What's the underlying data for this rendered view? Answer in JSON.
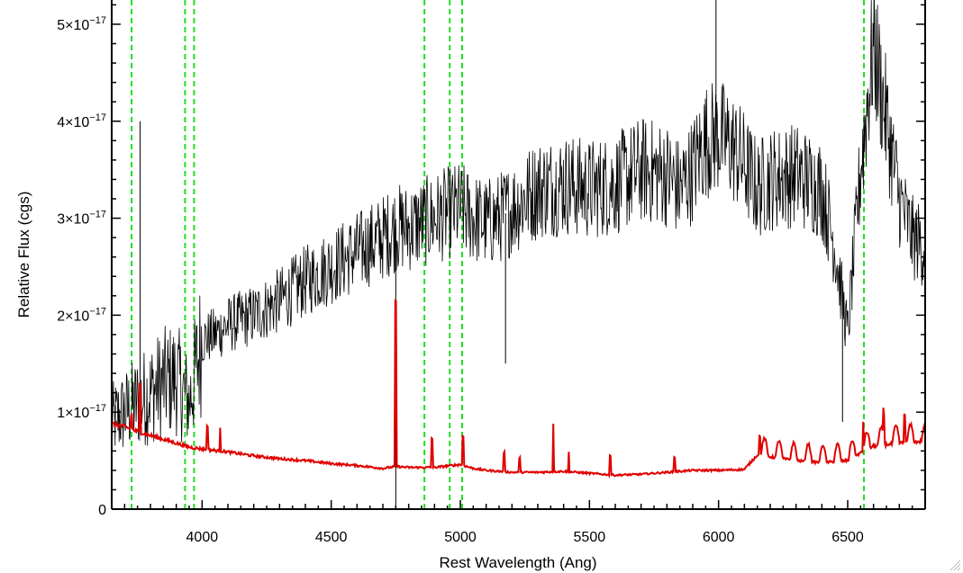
{
  "chart_data": {
    "type": "line",
    "title": "",
    "xlabel": "Rest Wavelength (Ang)",
    "ylabel": "Relative Flux (cgs)",
    "xlim": [
      3650,
      6800
    ],
    "ylim": [
      0,
      5.25e-17
    ],
    "x_ticks": [
      4000,
      4500,
      5000,
      5500,
      6000,
      6500
    ],
    "x_tick_labels": [
      "4000",
      "4500",
      "5000",
      "5500",
      "6000",
      "6500"
    ],
    "y_ticks": [
      0,
      1e-17,
      2e-17,
      3e-17,
      4e-17,
      5e-17
    ],
    "y_tick_labels": [
      {
        "mantissa": "0",
        "exponent": ""
      },
      {
        "mantissa": "1×10",
        "exponent": "−17"
      },
      {
        "mantissa": "2×10",
        "exponent": "−17"
      },
      {
        "mantissa": "3×10",
        "exponent": "−17"
      },
      {
        "mantissa": "4×10",
        "exponent": "−17"
      },
      {
        "mantissa": "5×10",
        "exponent": "−17"
      }
    ],
    "grid": false,
    "legend": "none",
    "series": [
      {
        "color": "#000000",
        "style": "noisy-spectrum",
        "x": [
          3650,
          3700,
          3750,
          3800,
          3850,
          3900,
          3950,
          4000,
          4050,
          4100,
          4200,
          4300,
          4400,
          4500,
          4600,
          4700,
          4750,
          4800,
          4850,
          4900,
          4950,
          5000,
          5050,
          5100,
          5150,
          5200,
          5300,
          5400,
          5500,
          5600,
          5700,
          5800,
          5850,
          5900,
          5950,
          6000,
          6050,
          6100,
          6150,
          6200,
          6300,
          6400,
          6450,
          6500,
          6550,
          6600,
          6650,
          6700,
          6750,
          6800
        ],
        "y": [
          9e-18,
          1e-17,
          1.1e-17,
          1.2e-17,
          1.3e-17,
          1.35e-17,
          1.1e-17,
          1.75e-17,
          1.8e-17,
          1.9e-17,
          2e-17,
          2.15e-17,
          2.35e-17,
          2.5e-17,
          2.65e-17,
          2.8e-17,
          2.9e-17,
          2.9e-17,
          2.95e-17,
          3e-17,
          3.05e-17,
          3.1e-17,
          3e-17,
          2.95e-17,
          3e-17,
          3.1e-17,
          3.3e-17,
          3.35e-17,
          3.3e-17,
          3.35e-17,
          3.5e-17,
          3.45e-17,
          3.3e-17,
          3.5e-17,
          3.8e-17,
          3.85e-17,
          3.75e-17,
          3.55e-17,
          3.3e-17,
          3.4e-17,
          3.45e-17,
          3.3e-17,
          2.7e-17,
          1.8e-17,
          3.5e-17,
          4.8e-17,
          4e-17,
          3.2e-17,
          2.8e-17,
          2.7e-17
        ],
        "spikes": [
          {
            "x": 3760,
            "y": 4e-17
          },
          {
            "x": 4750,
            "y": 0.0
          },
          {
            "x": 5175,
            "y": 1.5e-17
          },
          {
            "x": 5990,
            "y": 5.25e-17
          },
          {
            "x": 6480,
            "y": 9e-18
          }
        ]
      },
      {
        "color": "#e00000",
        "style": "model-fit",
        "x": [
          3650,
          3700,
          3750,
          3800,
          3850,
          3900,
          3950,
          4000,
          4100,
          4200,
          4300,
          4400,
          4500,
          4600,
          4700,
          4750,
          4800,
          4900,
          5000,
          5050,
          5100,
          5200,
          5300,
          5400,
          5500,
          5600,
          5700,
          5800,
          5900,
          6000,
          6100,
          6150,
          6200,
          6300,
          6400,
          6500,
          6550,
          6600,
          6700,
          6800
        ],
        "y": [
          8.8e-18,
          8.5e-18,
          8e-18,
          7.6e-18,
          7.2e-18,
          6.8e-18,
          6.4e-18,
          6.2e-18,
          5.9e-18,
          5.5e-18,
          5.2e-18,
          5e-18,
          4.7e-18,
          4.5e-18,
          4.2e-18,
          4.4e-18,
          4.3e-18,
          4.3e-18,
          4.6e-18,
          4.2e-18,
          4e-18,
          3.8e-18,
          3.8e-18,
          3.9e-18,
          3.7e-18,
          3.5e-18,
          3.6e-18,
          3.8e-18,
          4e-18,
          4e-18,
          4.1e-18,
          5.6e-18,
          5.4e-18,
          5e-18,
          4.8e-18,
          5e-18,
          5.8e-18,
          6.5e-18,
          6.8e-18,
          7e-18
        ],
        "emission_lines": [
          {
            "x": 3727,
            "height": 1.5e-18
          },
          {
            "x": 3760,
            "height": 5e-18
          },
          {
            "x": 4020,
            "height": 2.5e-18
          },
          {
            "x": 4070,
            "height": 2.5e-18
          },
          {
            "x": 4750,
            "height": 1.7e-17
          },
          {
            "x": 4890,
            "height": 3e-18
          },
          {
            "x": 5010,
            "height": 3e-18
          },
          {
            "x": 5170,
            "height": 2e-18
          },
          {
            "x": 5230,
            "height": 1.5e-18
          },
          {
            "x": 5360,
            "height": 5e-18
          },
          {
            "x": 5420,
            "height": 2e-18
          },
          {
            "x": 5580,
            "height": 2e-18
          },
          {
            "x": 5830,
            "height": 1.5e-18
          },
          {
            "x": 6160,
            "height": 2e-18
          },
          {
            "x": 6560,
            "height": 3e-18
          },
          {
            "x": 6640,
            "height": 2.5e-18
          },
          {
            "x": 6720,
            "height": 3e-18
          }
        ]
      }
    ],
    "vertical_lines": {
      "color": "#22dd22",
      "style": "dashed",
      "x": [
        3727,
        3934,
        3969,
        4861,
        4959,
        5007,
        6563
      ]
    }
  }
}
